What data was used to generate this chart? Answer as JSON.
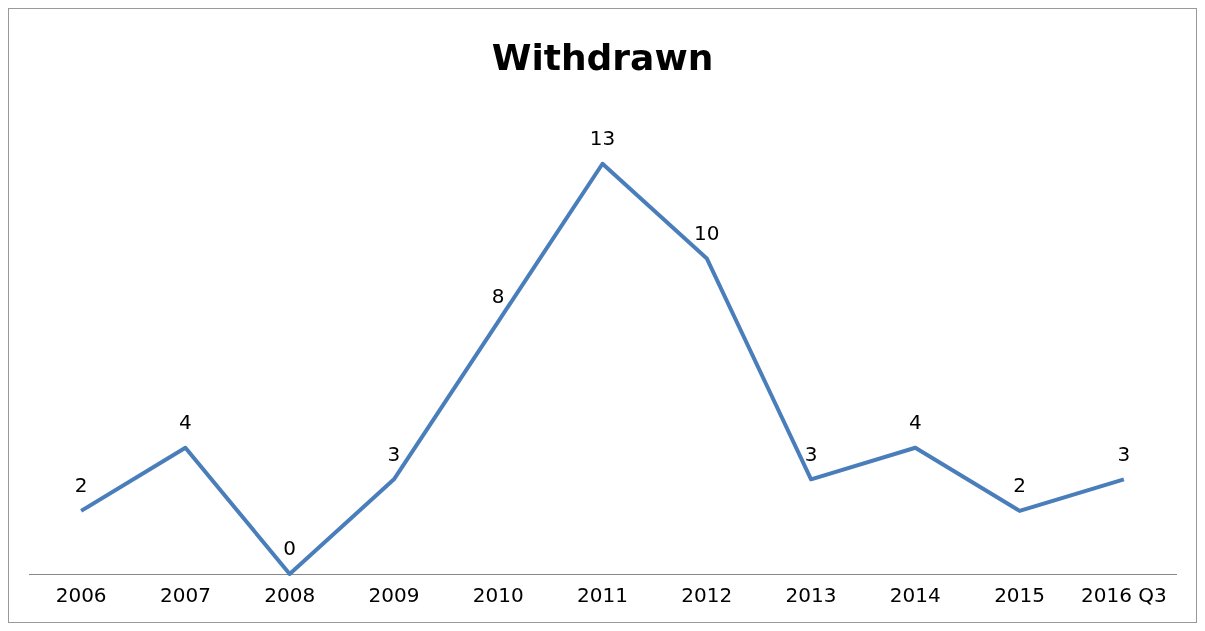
{
  "chart_data": {
    "type": "line",
    "title": "Withdrawn",
    "categories": [
      "2006",
      "2007",
      "2008",
      "2009",
      "2010",
      "2011",
      "2012",
      "2013",
      "2014",
      "2015",
      "2016 Q3"
    ],
    "series": [
      {
        "color": "#4a7ebb",
        "values": [
          2,
          4,
          0,
          3,
          8,
          13,
          10,
          3,
          4,
          2,
          3
        ]
      }
    ],
    "data_labels": true,
    "legend": false,
    "grid": false,
    "marker": "none",
    "line_style": "solid"
  }
}
